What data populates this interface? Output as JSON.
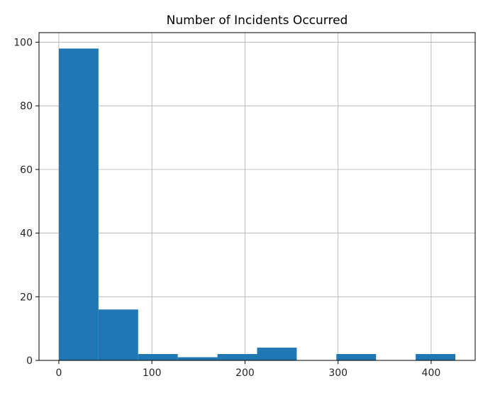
{
  "chart_data": {
    "type": "bar",
    "title": "Number of Incidents Occurred",
    "xlabel": "",
    "ylabel": "",
    "bins": [
      {
        "x0": 0.0,
        "x1": 42.6,
        "count": 98
      },
      {
        "x0": 42.6,
        "x1": 85.2,
        "count": 16
      },
      {
        "x0": 85.2,
        "x1": 127.8,
        "count": 2
      },
      {
        "x0": 127.8,
        "x1": 170.4,
        "count": 1
      },
      {
        "x0": 170.4,
        "x1": 213.0,
        "count": 2
      },
      {
        "x0": 213.0,
        "x1": 255.6,
        "count": 4
      },
      {
        "x0": 255.6,
        "x1": 298.2,
        "count": 0
      },
      {
        "x0": 298.2,
        "x1": 340.8,
        "count": 2
      },
      {
        "x0": 340.8,
        "x1": 383.4,
        "count": 0
      },
      {
        "x0": 383.4,
        "x1": 426.0,
        "count": 2
      }
    ],
    "xlim": [
      -21.3,
      447.3
    ],
    "ylim": [
      0,
      103
    ],
    "xticks": [
      0,
      100,
      200,
      300,
      400
    ],
    "yticks": [
      0,
      20,
      40,
      60,
      80,
      100
    ],
    "grid": true,
    "bar_color": "#1f77b4"
  }
}
